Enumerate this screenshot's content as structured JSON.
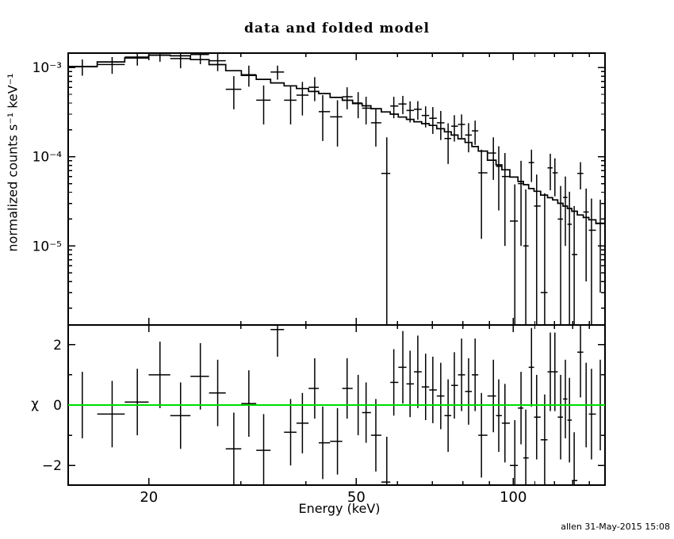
{
  "window": {
    "title": "data and folded model",
    "footer": "allen 31-May-2015 15:08"
  },
  "colors": {
    "foreground": "#000000",
    "background": "#ffffff",
    "model_line": "#000000",
    "zero_line": "#00dd00"
  },
  "chart_data": [
    {
      "type": "scatter",
      "title": "data and folded model",
      "xlabel": "",
      "ylabel": "normalized counts s⁻¹ keV⁻¹",
      "xscale": "log",
      "yscale": "log",
      "xlim": [
        14,
        150
      ],
      "ylim": [
        1.3e-06,
        0.00145
      ],
      "grid": false,
      "legend": "none",
      "x_major_ticks": [
        20,
        50,
        100
      ],
      "x_major_tick_labels": [
        "20",
        "50",
        "100"
      ],
      "x_minor_ticks": [
        30,
        40,
        60,
        70,
        80,
        90,
        110,
        120,
        130,
        140,
        150
      ],
      "y_major_ticks": [
        0.001,
        0.0001,
        1e-05
      ],
      "y_major_tick_labels": [
        "10⁻³",
        "10⁻⁴",
        "10⁻⁵"
      ],
      "series": [
        {
          "name": "data",
          "marker": "cross-with-errors",
          "x": [
            14.9,
            17.0,
            19.0,
            21.0,
            23.0,
            25.1,
            27.1,
            29.1,
            31.1,
            33.2,
            35.3,
            37.4,
            39.4,
            41.6,
            43.1,
            46.0,
            48.0,
            50.4,
            52.2,
            54.5,
            57.2,
            59.0,
            61.4,
            63.4,
            65.6,
            67.9,
            70.1,
            72.6,
            75.0,
            77.1,
            79.6,
            82.1,
            84.5,
            86.9,
            91.6,
            93.8,
            96.4,
            100.7,
            103.5,
            105.7,
            108.4,
            110.9,
            114.9,
            117.8,
            120.2,
            123.3,
            125.9,
            128.2,
            130.9,
            134.6,
            138.0,
            141.3,
            146.9
          ],
          "y": [
            0.00102,
            0.00108,
            0.00131,
            0.00144,
            0.00126,
            0.0014,
            0.00119,
            0.00057,
            0.00083,
            0.00043,
            0.00089,
            0.00043,
            0.00049,
            0.0006,
            0.00032,
            0.00028,
            0.00047,
            0.0004,
            0.00035,
            0.00024,
            6.5e-05,
            0.00037,
            0.00039,
            0.00033,
            0.00034,
            0.00029,
            0.00027,
            0.00024,
            0.00016,
            0.00022,
            0.00023,
            0.000175,
            0.000195,
            6.6e-05,
            0.00011,
            7.8e-05,
            6e-05,
            1.9e-05,
            5e-05,
            1e-05,
            8.6e-05,
            2.8e-05,
            3e-06,
            7.5e-05,
            6.6e-05,
            2e-05,
            3.5e-05,
            1.75e-05,
            8e-06,
            6.5e-05,
            2.4e-05,
            1.5e-05,
            1.8e-05
          ],
          "yerr": [
            0.00021,
            0.00023,
            0.00026,
            0.00028,
            0.00028,
            0.00031,
            0.00028,
            0.00023,
            0.00022,
            0.0002,
            0.00016,
            0.0002,
            0.0002,
            0.00018,
            0.00017,
            0.00015,
            0.00013,
            0.00013,
            0.00012,
            0.00011,
            0.0001,
            0.0001,
            9e-05,
            8.8e-05,
            8e-05,
            7.7e-05,
            9e-05,
            8.6e-05,
            7.7e-05,
            7.2e-05,
            6.8e-05,
            6.3e-05,
            5.9e-05,
            5.4e-05,
            5.5e-05,
            5.3e-05,
            5e-05,
            3e-05,
            4e-05,
            3.3e-05,
            3.4e-05,
            3.5e-05,
            3.6e-05,
            3.3e-05,
            3e-05,
            2.7e-05,
            2.5e-05,
            2.3e-05,
            2e-05,
            2.2e-05,
            2e-05,
            1.9e-05,
            1.5e-05
          ]
        }
      ],
      "model": {
        "name": "folded model (step line)",
        "x": [
          14.0,
          14.5,
          19,
          22,
          26,
          30,
          35,
          40,
          45,
          50,
          57,
          65,
          70,
          75,
          83,
          90,
          95,
          102,
          109,
          120,
          135,
          148,
          150
        ],
        "y": [
          0.00098,
          0.001,
          0.00128,
          0.00142,
          0.00118,
          0.00086,
          0.00068,
          0.00057,
          0.00048,
          0.0004,
          0.00032,
          0.00025,
          0.000225,
          0.00019,
          0.00014,
          0.0001,
          7.6e-05,
          5.6e-05,
          4.3e-05,
          3.3e-05,
          2.2e-05,
          1.75e-05,
          1.7e-05
        ]
      }
    },
    {
      "type": "scatter",
      "title": "",
      "xlabel": "Energy (keV)",
      "ylabel": "χ",
      "xscale": "log",
      "yscale": "linear",
      "xlim": [
        14,
        150
      ],
      "ylim": [
        -2.65,
        2.65
      ],
      "grid": false,
      "x_major_ticks": [
        20,
        50,
        100
      ],
      "x_major_tick_labels": [
        "20",
        "50",
        "100"
      ],
      "x_minor_ticks": [
        30,
        40,
        60,
        70,
        80,
        90,
        110,
        120,
        130,
        140,
        150
      ],
      "y_major_ticks": [
        -2,
        0,
        2
      ],
      "y_major_tick_labels": [
        "−2",
        "0",
        "2"
      ],
      "y_minor_ticks": [
        -1,
        1
      ],
      "zero_line_y": 0,
      "zero_line_color": "#00dd00",
      "series": [
        {
          "name": "residuals",
          "marker": "cross-with-errors",
          "x": [
            14.9,
            17.0,
            19.0,
            21.0,
            23.0,
            25.1,
            27.1,
            29.1,
            31.1,
            33.2,
            35.3,
            37.4,
            39.4,
            41.6,
            43.1,
            46.0,
            48.0,
            50.4,
            52.2,
            54.5,
            57.2,
            59.0,
            61.4,
            63.4,
            65.6,
            67.9,
            70.1,
            72.6,
            75.0,
            77.1,
            79.6,
            82.1,
            84.5,
            86.9,
            91.6,
            93.8,
            96.4,
            100.7,
            103.5,
            105.7,
            108.4,
            110.9,
            114.9,
            117.8,
            120.2,
            123.3,
            125.9,
            128.2,
            130.9,
            134.6,
            138.0,
            141.3,
            146.9
          ],
          "y": [
            0.0,
            -0.3,
            0.1,
            1.0,
            -0.35,
            0.95,
            0.4,
            -1.45,
            0.05,
            -1.5,
            2.5,
            -0.9,
            -0.6,
            0.55,
            -1.25,
            -1.2,
            0.55,
            0.0,
            -0.25,
            -1.0,
            -2.55,
            0.75,
            1.25,
            0.7,
            1.1,
            0.6,
            0.5,
            0.3,
            -0.35,
            0.65,
            1.0,
            0.45,
            1.0,
            -1.0,
            0.3,
            -0.35,
            -0.6,
            -2.0,
            -0.1,
            -1.75,
            1.25,
            -0.4,
            -1.15,
            1.1,
            1.1,
            -0.4,
            0.2,
            -0.5,
            -2.5,
            1.75,
            0.0,
            -0.3,
            0.0
          ],
          "yerr": [
            1.1,
            1.1,
            1.1,
            1.1,
            1.1,
            1.1,
            1.1,
            1.2,
            1.1,
            1.2,
            0.9,
            1.1,
            1.0,
            1.0,
            1.2,
            1.1,
            1.0,
            1.0,
            1.0,
            1.2,
            1.5,
            1.1,
            1.2,
            1.1,
            1.2,
            1.1,
            1.1,
            1.1,
            1.2,
            1.1,
            1.2,
            1.1,
            1.2,
            1.4,
            1.2,
            1.2,
            1.3,
            1.5,
            1.2,
            1.6,
            1.3,
            1.4,
            1.5,
            1.3,
            1.3,
            1.4,
            1.3,
            1.4,
            1.6,
            1.5,
            1.4,
            1.5,
            1.5
          ]
        }
      ]
    }
  ]
}
